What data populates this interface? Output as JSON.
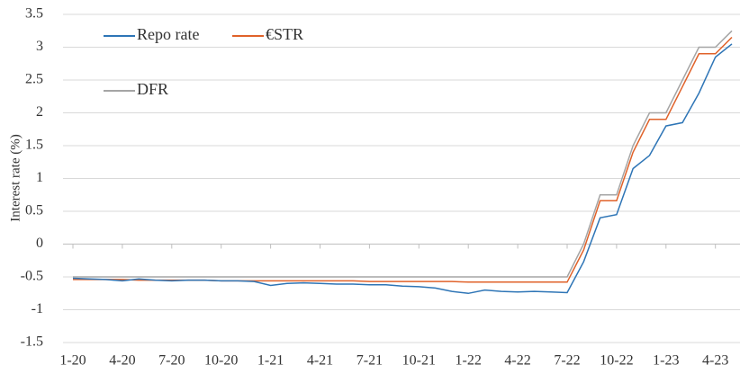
{
  "chart_data": {
    "type": "line",
    "y_label": "Interest rate (%)",
    "x": [
      "2020-01",
      "2020-02",
      "2020-03",
      "2020-04",
      "2020-05",
      "2020-06",
      "2020-07",
      "2020-08",
      "2020-09",
      "2020-10",
      "2020-11",
      "2020-12",
      "2021-01",
      "2021-02",
      "2021-03",
      "2021-04",
      "2021-05",
      "2021-06",
      "2021-07",
      "2021-08",
      "2021-09",
      "2021-10",
      "2021-11",
      "2021-12",
      "2022-01",
      "2022-02",
      "2022-03",
      "2022-04",
      "2022-05",
      "2022-06",
      "2022-07",
      "2022-08",
      "2022-09",
      "2022-10",
      "2022-11",
      "2022-12",
      "2023-01",
      "2023-02",
      "2023-03",
      "2023-04",
      "2023-05"
    ],
    "series": [
      {
        "name": "Repo rate",
        "color": "#2e75b6",
        "values": [
          -0.52,
          -0.53,
          -0.54,
          -0.56,
          -0.53,
          -0.55,
          -0.56,
          -0.55,
          -0.55,
          -0.56,
          -0.56,
          -0.57,
          -0.63,
          -0.6,
          -0.59,
          -0.6,
          -0.61,
          -0.61,
          -0.62,
          -0.62,
          -0.64,
          -0.65,
          -0.67,
          -0.72,
          -0.75,
          -0.7,
          -0.72,
          -0.73,
          -0.72,
          -0.73,
          -0.74,
          -0.27,
          0.4,
          0.45,
          1.15,
          1.35,
          1.8,
          1.85,
          2.3,
          2.85,
          3.05
        ]
      },
      {
        "name": "€STR",
        "color": "#e0622a",
        "values": [
          -0.54,
          -0.54,
          -0.54,
          -0.54,
          -0.55,
          -0.55,
          -0.55,
          -0.55,
          -0.55,
          -0.56,
          -0.56,
          -0.56,
          -0.56,
          -0.56,
          -0.56,
          -0.56,
          -0.56,
          -0.56,
          -0.57,
          -0.57,
          -0.57,
          -0.57,
          -0.57,
          -0.57,
          -0.58,
          -0.58,
          -0.58,
          -0.58,
          -0.58,
          -0.58,
          -0.58,
          -0.09,
          0.66,
          0.66,
          1.4,
          1.9,
          1.9,
          2.4,
          2.9,
          2.9,
          3.15
        ]
      },
      {
        "name": "DFR",
        "color": "#a5a5a5",
        "values": [
          -0.5,
          -0.5,
          -0.5,
          -0.5,
          -0.5,
          -0.5,
          -0.5,
          -0.5,
          -0.5,
          -0.5,
          -0.5,
          -0.5,
          -0.5,
          -0.5,
          -0.5,
          -0.5,
          -0.5,
          -0.5,
          -0.5,
          -0.5,
          -0.5,
          -0.5,
          -0.5,
          -0.5,
          -0.5,
          -0.5,
          -0.5,
          -0.5,
          -0.5,
          -0.5,
          -0.5,
          0,
          0.75,
          0.75,
          1.5,
          2.0,
          2.0,
          2.5,
          3.0,
          3.0,
          3.25
        ]
      }
    ],
    "xticks": [
      {
        "value": "2020-01",
        "label": "1-20"
      },
      {
        "value": "2020-04",
        "label": "4-20"
      },
      {
        "value": "2020-07",
        "label": "7-20"
      },
      {
        "value": "2020-10",
        "label": "10-20"
      },
      {
        "value": "2021-01",
        "label": "1-21"
      },
      {
        "value": "2021-04",
        "label": "4-21"
      },
      {
        "value": "2021-07",
        "label": "7-21"
      },
      {
        "value": "2021-10",
        "label": "10-21"
      },
      {
        "value": "2022-01",
        "label": "1-22"
      },
      {
        "value": "2022-04",
        "label": "4-22"
      },
      {
        "value": "2022-07",
        "label": "7-22"
      },
      {
        "value": "2022-10",
        "label": "10-22"
      },
      {
        "value": "2023-01",
        "label": "1-23"
      },
      {
        "value": "2023-04",
        "label": "4-23"
      }
    ],
    "ylim": [
      -1.5,
      3.5
    ],
    "yticks": [
      -1.5,
      -1,
      -0.5,
      0,
      0.5,
      1,
      1.5,
      2,
      2.5,
      3,
      3.5
    ],
    "grid": true
  }
}
